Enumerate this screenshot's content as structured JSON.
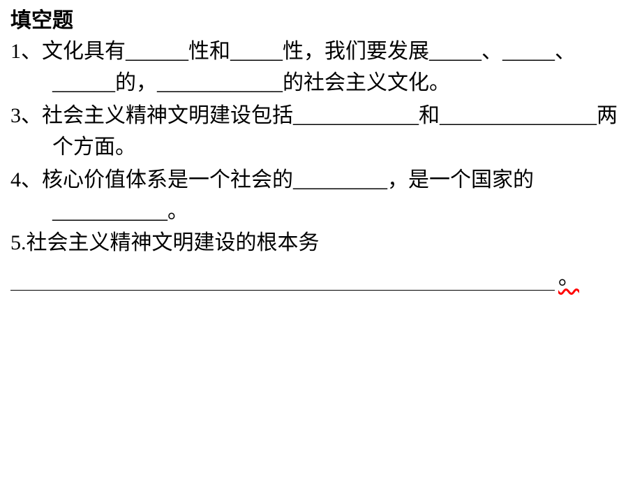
{
  "title": "填空题",
  "q1": "1、文化具有______性和_____性，我们要发展_____、_____、______的，____________的社会主义文化。",
  "q3": "3、社会主义精神文明建设包括____________和_______________两个方面。",
  "q4": "4、核心价值体系是一个社会的_________，是一个国家的___________。",
  "q5": "5.社会主义精神文明建设的根本务",
  "q5_period": "。"
}
